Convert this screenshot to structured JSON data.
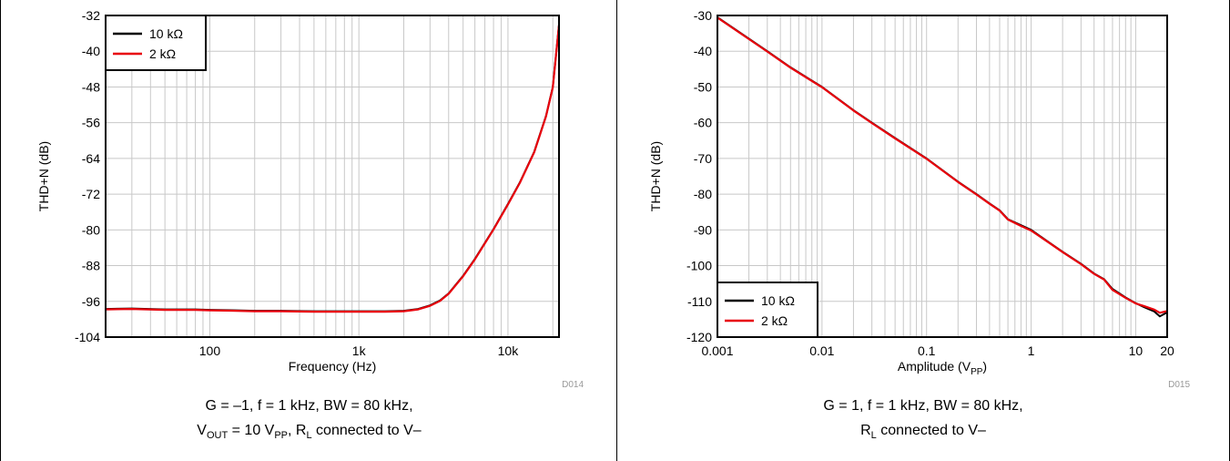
{
  "chart_data": [
    {
      "type": "line",
      "x_scale": "log",
      "xlabel": "Frequency (Hz)",
      "ylabel": "THD+N (dB)",
      "xlim": [
        20,
        22000
      ],
      "ylim": [
        -104,
        -32
      ],
      "x_ticks": [
        {
          "value": 100,
          "label": "100"
        },
        {
          "value": 1000,
          "label": "1k"
        },
        {
          "value": 10000,
          "label": "10k"
        }
      ],
      "y_ticks": [
        -32,
        -40,
        -48,
        -56,
        -64,
        -72,
        -80,
        -88,
        -96,
        -104
      ],
      "grid": true,
      "legend_position": "top-left",
      "figure_id": "D014",
      "caption": {
        "line1": "G = –1, f = 1 kHz, BW = 80 kHz,",
        "line2": {
          "v": "V",
          "v_sub": "OUT",
          "mid": " = 10 V",
          "pp_sub": "PP",
          "rest": ", R",
          "rl_sub": "L",
          "end": " connected to V–"
        }
      },
      "series": [
        {
          "name": "10 kΩ",
          "color": "#000000",
          "x": [
            20,
            30,
            50,
            80,
            100,
            150,
            200,
            300,
            500,
            800,
            1000,
            1500,
            2000,
            2500,
            3000,
            3500,
            4000,
            5000,
            6000,
            8000,
            10000,
            12000,
            15000,
            18000,
            20000,
            22000
          ],
          "y": [
            -97.7,
            -97.6,
            -97.8,
            -97.8,
            -97.9,
            -98.0,
            -98.1,
            -98.1,
            -98.2,
            -98.2,
            -98.2,
            -98.2,
            -98.1,
            -97.7,
            -96.9,
            -95.8,
            -94.2,
            -90.3,
            -86.5,
            -79.8,
            -74.2,
            -69.4,
            -62.5,
            -54.5,
            -48.0,
            -34.0
          ]
        },
        {
          "name": "2 kΩ",
          "color": "#e8000b",
          "x": [
            20,
            30,
            50,
            80,
            100,
            150,
            200,
            300,
            500,
            800,
            1000,
            1500,
            2000,
            2500,
            3000,
            3500,
            4000,
            5000,
            6000,
            8000,
            10000,
            12000,
            15000,
            18000,
            20000,
            22000
          ],
          "y": [
            -97.8,
            -97.7,
            -97.9,
            -97.9,
            -98.0,
            -98.1,
            -98.2,
            -98.2,
            -98.3,
            -98.3,
            -98.3,
            -98.3,
            -98.2,
            -97.8,
            -97.0,
            -95.9,
            -94.3,
            -90.4,
            -86.6,
            -79.9,
            -74.3,
            -69.5,
            -62.6,
            -54.6,
            -48.1,
            -34.2
          ]
        }
      ]
    },
    {
      "type": "line",
      "x_scale": "log",
      "xlabel": {
        "main": "Amplitude (V",
        "sub": "PP",
        "end": ")"
      },
      "ylabel": "THD+N (dB)",
      "xlim": [
        0.001,
        20
      ],
      "ylim": [
        -120,
        -30
      ],
      "x_ticks": [
        {
          "value": 0.001,
          "label": "0.001"
        },
        {
          "value": 0.01,
          "label": "0.01"
        },
        {
          "value": 0.1,
          "label": "0.1"
        },
        {
          "value": 1,
          "label": "1"
        },
        {
          "value": 10,
          "label": "10"
        },
        {
          "value": 20,
          "label": "20"
        }
      ],
      "y_ticks": [
        -30,
        -40,
        -50,
        -60,
        -70,
        -80,
        -90,
        -100,
        -110,
        -120
      ],
      "grid": true,
      "legend_position": "bottom-left",
      "figure_id": "D015",
      "caption": {
        "line1": "G = 1, f = 1 kHz, BW = 80 kHz,",
        "line2": {
          "r": "R",
          "r_sub": "L",
          "end": " connected to V–"
        }
      },
      "series": [
        {
          "name": "10 kΩ",
          "color": "#000000",
          "x": [
            0.001,
            0.002,
            0.003,
            0.005,
            0.01,
            0.02,
            0.03,
            0.05,
            0.1,
            0.2,
            0.3,
            0.4,
            0.5,
            0.6,
            0.8,
            1,
            1.5,
            2,
            3,
            4,
            5,
            6,
            8,
            10,
            12,
            15,
            17,
            20
          ],
          "y": [
            -30.5,
            -36.5,
            -40.0,
            -44.5,
            -50.0,
            -56.5,
            -60.0,
            -64.3,
            -70.0,
            -76.5,
            -80.0,
            -82.6,
            -84.5,
            -87.0,
            -88.7,
            -90.0,
            -93.6,
            -96.1,
            -99.5,
            -102.2,
            -103.8,
            -106.5,
            -108.9,
            -110.5,
            -111.6,
            -112.8,
            -114.2,
            -113.1
          ]
        },
        {
          "name": "2 kΩ",
          "color": "#e8000b",
          "x": [
            0.001,
            0.002,
            0.003,
            0.005,
            0.01,
            0.02,
            0.03,
            0.05,
            0.1,
            0.2,
            0.3,
            0.4,
            0.5,
            0.6,
            0.8,
            1,
            1.5,
            2,
            3,
            4,
            5,
            6,
            8,
            10,
            12,
            15,
            17,
            20
          ],
          "y": [
            -30.6,
            -36.6,
            -40.1,
            -44.6,
            -50.1,
            -56.6,
            -60.1,
            -64.4,
            -70.1,
            -76.6,
            -80.1,
            -82.7,
            -84.6,
            -87.1,
            -88.9,
            -90.2,
            -93.7,
            -96.2,
            -99.6,
            -102.3,
            -103.9,
            -106.8,
            -109.0,
            -110.6,
            -111.3,
            -112.3,
            -113.2,
            -112.7
          ]
        }
      ]
    }
  ]
}
